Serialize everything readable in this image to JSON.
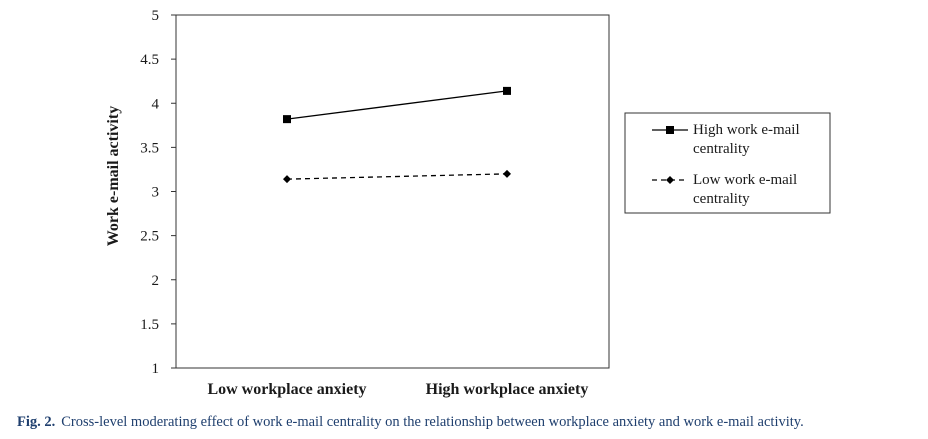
{
  "chart_data": {
    "type": "line",
    "categories": [
      "Low workplace anxiety",
      "High workplace anxiety"
    ],
    "series": [
      {
        "name": "High work e-mail centrality",
        "values": [
          3.82,
          4.14
        ],
        "style": "solid",
        "marker": "square",
        "color": "#000000"
      },
      {
        "name": "Low work e-mail centrality",
        "values": [
          3.14,
          3.2
        ],
        "style": "dashed",
        "marker": "diamond",
        "color": "#000000"
      }
    ],
    "ylabel": "Work e-mail activity",
    "xlabel": "",
    "ylim": [
      1,
      5
    ],
    "yticks": [
      "1",
      "1.5",
      "2",
      "2.5",
      "3",
      "3.5",
      "4",
      "4.5",
      "5"
    ],
    "legend_position": "right",
    "grid": false
  },
  "legend": {
    "items": [
      {
        "line1": "High work e-mail",
        "line2": "centrality"
      },
      {
        "line1": "Low work e-mail",
        "line2": "centrality"
      }
    ]
  },
  "caption": {
    "label": "Fig. 2.",
    "text": "Cross-level moderating effect of work e-mail centrality on the relationship between workplace anxiety and work e-mail activity."
  }
}
